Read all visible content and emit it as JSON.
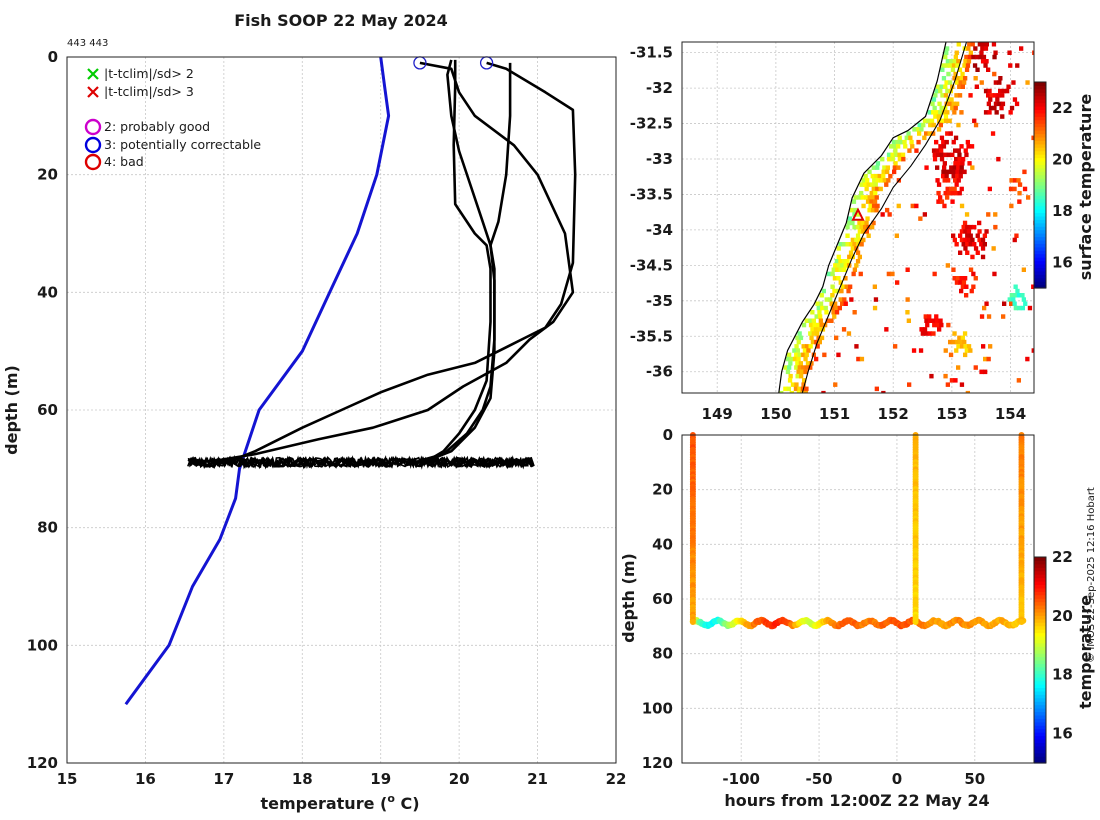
{
  "page": {
    "title": "Fish SOOP 22 May 2024",
    "id_label": "443 443",
    "credit": "© IMOS 22-Sep-2025 12:16 Hobart"
  },
  "colors": {
    "profile": "#000000",
    "climatology": "#1414d2",
    "qc_marker": "#2020c8"
  },
  "chart_data": [
    {
      "name": "depth-temperature-profile",
      "type": "line",
      "xlabel": "temperature",
      "xlabel_unit": "(o C)",
      "ylabel": "depth (m)",
      "xlim": [
        15,
        22
      ],
      "ylim": [
        120,
        0
      ],
      "xticks": [
        15,
        16,
        17,
        18,
        19,
        20,
        21,
        22
      ],
      "yticks": [
        0,
        20,
        40,
        60,
        80,
        100,
        120
      ],
      "grid": true,
      "legend": {
        "placement": "top-left",
        "entries": [
          {
            "marker": "x",
            "color": "#00cc00",
            "label": "|t-tclim|/sd> 2"
          },
          {
            "marker": "x",
            "color": "#dd0000",
            "label": "|t-tclim|/sd> 3"
          },
          {
            "marker": "o",
            "color": "#cc00cc",
            "label": "2: probably good"
          },
          {
            "marker": "o",
            "color": "#0000dd",
            "label": "3: potentially correctable"
          },
          {
            "marker": "o",
            "color": "#dd0000",
            "label": "4: bad"
          }
        ]
      },
      "series": [
        {
          "name": "climatology",
          "color": "#1414d2",
          "points": [
            [
              19.0,
              0
            ],
            [
              19.05,
              5
            ],
            [
              19.1,
              10
            ],
            [
              18.95,
              20
            ],
            [
              18.7,
              30
            ],
            [
              18.35,
              40
            ],
            [
              18.0,
              50
            ],
            [
              17.45,
              60
            ],
            [
              17.2,
              70
            ],
            [
              17.15,
              75
            ],
            [
              16.95,
              82
            ],
            [
              16.6,
              90
            ],
            [
              16.3,
              100
            ],
            [
              15.75,
              110
            ]
          ]
        },
        {
          "name": "profile-1",
          "color": "#000000",
          "points": [
            [
              19.5,
              1
            ],
            [
              19.9,
              2
            ],
            [
              20.0,
              6
            ],
            [
              20.2,
              10
            ],
            [
              20.7,
              15
            ],
            [
              21.0,
              20
            ],
            [
              21.35,
              30
            ],
            [
              21.45,
              40
            ],
            [
              21.2,
              45
            ],
            [
              20.9,
              48
            ],
            [
              20.6,
              52
            ],
            [
              20.05,
              56
            ],
            [
              19.6,
              60
            ],
            [
              18.9,
              63
            ],
            [
              18.2,
              65
            ],
            [
              17.4,
              67.5
            ],
            [
              16.9,
              68.6
            ],
            [
              16.6,
              69
            ]
          ]
        },
        {
          "name": "profile-2",
          "color": "#000000",
          "points": [
            [
              20.35,
              1
            ],
            [
              20.6,
              2
            ],
            [
              21.1,
              6
            ],
            [
              21.45,
              9
            ],
            [
              21.48,
              20
            ],
            [
              21.45,
              35
            ],
            [
              21.3,
              42
            ],
            [
              21.1,
              46
            ],
            [
              20.8,
              48
            ],
            [
              20.5,
              50
            ],
            [
              20.2,
              52
            ],
            [
              19.6,
              54
            ],
            [
              19.0,
              57
            ],
            [
              18.5,
              60
            ],
            [
              18.0,
              63
            ],
            [
              17.4,
              67
            ],
            [
              17.1,
              68.6
            ]
          ]
        },
        {
          "name": "profile-3",
          "color": "#000000",
          "points": [
            [
              19.9,
              0.5
            ],
            [
              19.85,
              3
            ],
            [
              19.9,
              10
            ],
            [
              20.0,
              16
            ],
            [
              20.15,
              22
            ],
            [
              20.3,
              28
            ],
            [
              20.4,
              32
            ],
            [
              20.45,
              36
            ],
            [
              20.45,
              40
            ],
            [
              20.45,
              50
            ],
            [
              20.4,
              58
            ],
            [
              20.2,
              63
            ],
            [
              19.9,
              67
            ],
            [
              19.6,
              68.6
            ]
          ]
        },
        {
          "name": "profile-4",
          "color": "#000000",
          "points": [
            [
              20.65,
              1
            ],
            [
              20.65,
              10
            ],
            [
              20.6,
              20
            ],
            [
              20.5,
              28
            ],
            [
              20.4,
              32
            ],
            [
              20.45,
              38
            ],
            [
              20.45,
              48
            ],
            [
              20.4,
              56
            ],
            [
              20.3,
              60
            ],
            [
              20.1,
              64
            ],
            [
              19.8,
              67.5
            ],
            [
              19.5,
              68.6
            ]
          ]
        },
        {
          "name": "profile-5",
          "color": "#000000",
          "points": [
            [
              19.95,
              0.5
            ],
            [
              19.95,
              5
            ],
            [
              19.93,
              15
            ],
            [
              19.95,
              25
            ],
            [
              20.2,
              30
            ],
            [
              20.35,
              32
            ],
            [
              20.4,
              36
            ],
            [
              20.4,
              45
            ],
            [
              20.35,
              55
            ],
            [
              20.2,
              60
            ],
            [
              20.0,
              64
            ],
            [
              19.8,
              67
            ],
            [
              19.6,
              68.6
            ]
          ]
        }
      ],
      "noise_band": {
        "x_range": [
          16.55,
          20.95
        ],
        "depth_center": 68.9,
        "depth_halfwidth": 0.8
      },
      "qc_markers": [
        {
          "x": 19.5,
          "y": 1,
          "flag": 3
        },
        {
          "x": 20.35,
          "y": 1,
          "flag": 3
        }
      ]
    },
    {
      "name": "surface-temperature-map",
      "type": "heatmap",
      "xlim": [
        148.4,
        154.4
      ],
      "ylim": [
        -36.3,
        -31.35
      ],
      "xticks": [
        149,
        150,
        151,
        152,
        153,
        154
      ],
      "yticks": [
        -31.5,
        -32,
        -32.5,
        -33,
        -33.5,
        -34,
        -34.5,
        -35,
        -35.5,
        -36
      ],
      "xtick_labels": [
        "149",
        "150",
        "151",
        "152",
        "153",
        "154"
      ],
      "ytick_labels": [
        "-31.5",
        "-32",
        "-32.5",
        "-33",
        "-33.5",
        "-34",
        "-34.5",
        "-35",
        "-35.5",
        "-36"
      ],
      "colorbar": {
        "label": "surface temperature",
        "range": [
          15,
          23
        ],
        "ticks": [
          16,
          18,
          20,
          22
        ],
        "tick_labels": [
          "16",
          "18",
          "20",
          "22"
        ]
      },
      "coastline": [
        [
          152.9,
          -31.35
        ],
        [
          152.75,
          -31.9
        ],
        [
          152.55,
          -32.4
        ],
        [
          152.25,
          -32.6
        ],
        [
          152.0,
          -32.7
        ],
        [
          151.8,
          -32.95
        ],
        [
          151.5,
          -33.2
        ],
        [
          151.3,
          -33.55
        ],
        [
          151.2,
          -33.9
        ],
        [
          151.05,
          -34.2
        ],
        [
          150.9,
          -34.5
        ],
        [
          150.8,
          -34.8
        ],
        [
          150.65,
          -35.05
        ],
        [
          150.45,
          -35.3
        ],
        [
          150.2,
          -35.7
        ],
        [
          150.1,
          -36.0
        ],
        [
          150.05,
          -36.3
        ]
      ],
      "isobath": [
        [
          153.25,
          -31.35
        ],
        [
          153.05,
          -31.9
        ],
        [
          152.8,
          -32.45
        ],
        [
          152.55,
          -32.8
        ],
        [
          152.3,
          -33.1
        ],
        [
          152.0,
          -33.4
        ],
        [
          151.8,
          -33.7
        ],
        [
          151.5,
          -34.05
        ],
        [
          151.3,
          -34.4
        ],
        [
          151.1,
          -34.8
        ],
        [
          150.9,
          -35.2
        ],
        [
          150.7,
          -35.6
        ],
        [
          150.55,
          -36.0
        ],
        [
          150.45,
          -36.3
        ]
      ],
      "station": {
        "lon": 151.4,
        "lat": -33.8,
        "color": "#dd0000"
      }
    },
    {
      "name": "time-depth-temperature",
      "type": "scatter",
      "xlabel": "hours from 12:00Z 22 May 24",
      "ylabel": "depth (m)",
      "xlim": [
        -138,
        88
      ],
      "ylim": [
        120,
        0
      ],
      "xticks": [
        -100,
        -50,
        0,
        50
      ],
      "xtick_labels": [
        "-100",
        "-50",
        "0",
        "50"
      ],
      "yticks": [
        0,
        20,
        40,
        60,
        80,
        100,
        120
      ],
      "colorbar": {
        "label": "temperature",
        "range": [
          15,
          22
        ],
        "ticks": [
          16,
          18,
          20,
          22
        ],
        "tick_labels": [
          "16",
          "18",
          "20",
          "22"
        ]
      },
      "vertical_profiles": [
        {
          "hour": -131,
          "surface_temp": 20.6,
          "bottom_temp": 20.0
        },
        {
          "hour": 12,
          "surface_temp": 19.9,
          "bottom_temp": 19.6
        },
        {
          "hour": 80,
          "surface_temp": 20.3,
          "bottom_temp": 19.8
        }
      ],
      "bottom_track": {
        "hours_from": -131,
        "hours_to": 81,
        "depth": 68.8,
        "temps": [
          [
            -131,
            19.5
          ],
          [
            -128,
            18.8
          ],
          [
            -125,
            18.0
          ],
          [
            -120,
            17.6
          ],
          [
            -115,
            17.8
          ],
          [
            -110,
            18.5
          ],
          [
            -100,
            19.6
          ],
          [
            -90,
            20.4
          ],
          [
            -80,
            20.9
          ],
          [
            -70,
            20.7
          ],
          [
            -60,
            19.3
          ],
          [
            -55,
            19.0
          ],
          [
            -50,
            19.4
          ],
          [
            -40,
            20.3
          ],
          [
            -30,
            20.6
          ],
          [
            -20,
            20.2
          ],
          [
            -10,
            20.4
          ],
          [
            0,
            20.6
          ],
          [
            10,
            20.5
          ],
          [
            20,
            20.2
          ],
          [
            30,
            20.0
          ],
          [
            40,
            20.2
          ],
          [
            50,
            20.1
          ],
          [
            60,
            20.0
          ],
          [
            70,
            19.9
          ],
          [
            81,
            19.7
          ]
        ]
      }
    }
  ]
}
